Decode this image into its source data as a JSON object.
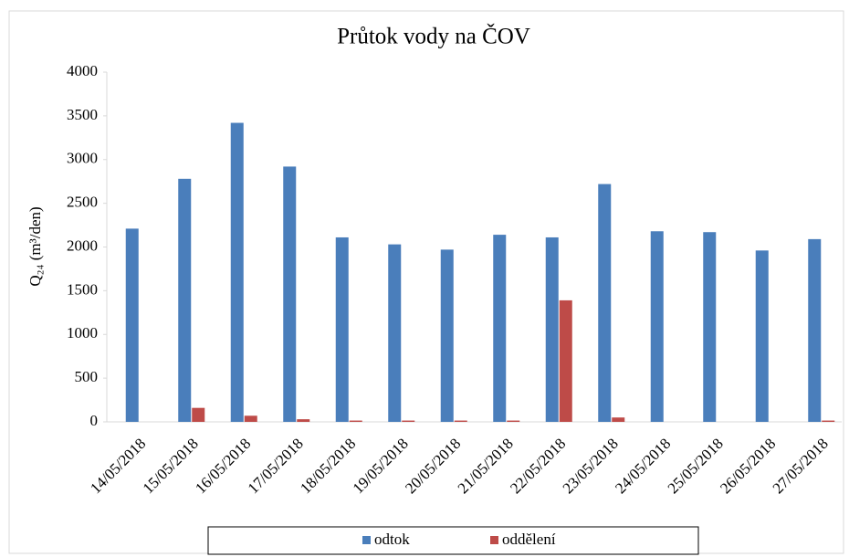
{
  "chart_data": {
    "type": "bar",
    "title": "Průtok vody na ČOV",
    "y_label": "Q₂₄ (m³/den)",
    "categories": [
      "14/05/2018",
      "15/05/2018",
      "16/05/2018",
      "17/05/2018",
      "18/05/2018",
      "19/05/2018",
      "20/05/2018",
      "21/05/2018",
      "22/05/2018",
      "23/05/2018",
      "24/05/2018",
      "25/05/2018",
      "26/05/2018",
      "27/05/2018"
    ],
    "series": [
      {
        "name": "odtok",
        "color": "#4a7ebb",
        "values": [
          2210,
          2780,
          3420,
          2920,
          2110,
          2030,
          1970,
          2140,
          2110,
          2720,
          2180,
          2170,
          1960,
          2090
        ]
      },
      {
        "name": "oddělení",
        "color": "#be4b48",
        "values": [
          0,
          160,
          70,
          30,
          15,
          15,
          15,
          15,
          1390,
          50,
          0,
          0,
          0,
          15
        ]
      }
    ],
    "ylim": [
      0,
      4000
    ],
    "yticks": [
      0,
      500,
      1000,
      1500,
      2000,
      2500,
      3000,
      3500,
      4000
    ],
    "grid": false,
    "legend": "bottom"
  }
}
